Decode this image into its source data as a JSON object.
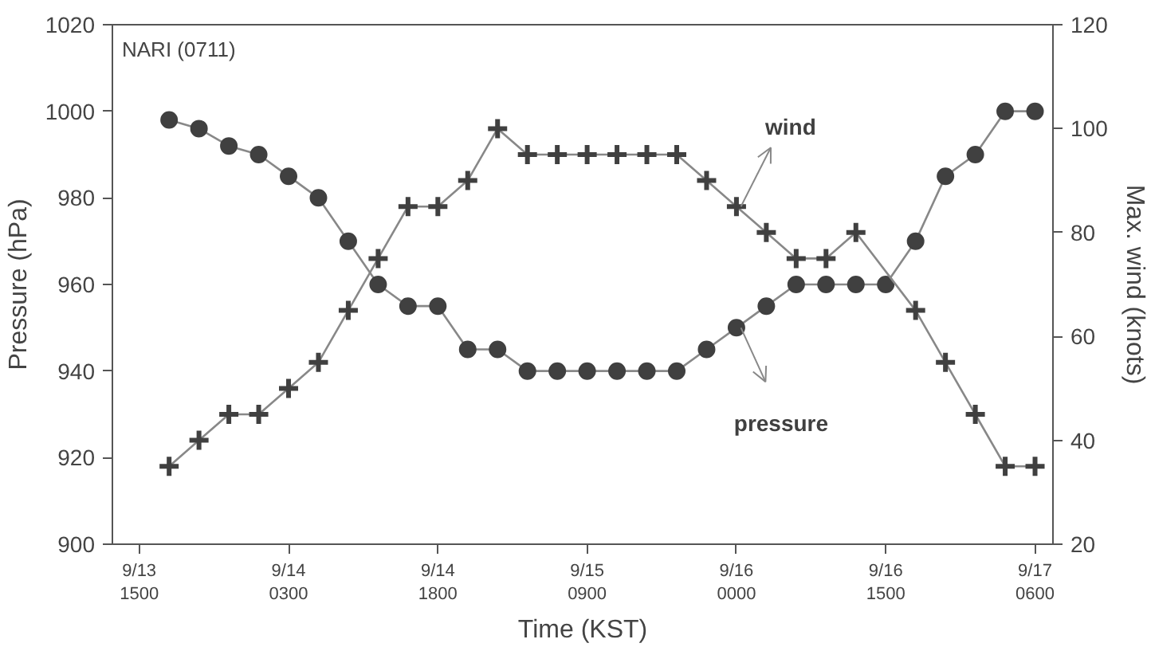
{
  "chart_data": {
    "type": "line",
    "xlabel": "Time (KST)",
    "ylabel": "Pressure (hPa)",
    "y2label": "Max. wind (knots)",
    "categories": [
      "9/13\n1500",
      null,
      null,
      null,
      null,
      "9/14\n0300",
      null,
      null,
      null,
      null,
      "9/14\n1800",
      null,
      null,
      null,
      null,
      "9/15\n0900",
      null,
      null,
      null,
      null,
      "9/16\n0000",
      null,
      null,
      null,
      null,
      "9/16\n1500",
      null,
      null,
      null,
      null,
      "9/17\n0600"
    ],
    "ylim": [
      900,
      1020
    ],
    "yticks": [
      900,
      920,
      940,
      960,
      980,
      1000,
      1020
    ],
    "y2lim": [
      20,
      120
    ],
    "y2ticks": [
      20,
      40,
      60,
      80,
      100,
      120
    ],
    "series": [
      {
        "name": "pressure",
        "color": "#404040",
        "marker": "circle",
        "values": [
          null,
          998,
          996,
          992,
          990,
          985,
          980,
          970,
          960,
          955,
          955,
          945,
          945,
          940,
          940,
          940,
          940,
          940,
          940,
          945,
          950,
          955,
          960,
          960,
          960,
          960,
          970,
          985,
          990,
          1000,
          1000
        ]
      },
      {
        "name": "wind",
        "color": "#404040",
        "marker": "cross",
        "axis": "y2",
        "values": [
          null,
          35,
          40,
          45,
          45,
          50,
          55,
          65,
          75,
          85,
          85,
          90,
          100,
          95,
          95,
          95,
          95,
          95,
          95,
          90,
          85,
          80,
          75,
          75,
          80,
          null,
          65,
          55,
          45,
          35,
          35
        ]
      }
    ],
    "annotations": [
      "NARI (0711)"
    ],
    "grid": false,
    "legend": false,
    "line_style": "solid"
  }
}
